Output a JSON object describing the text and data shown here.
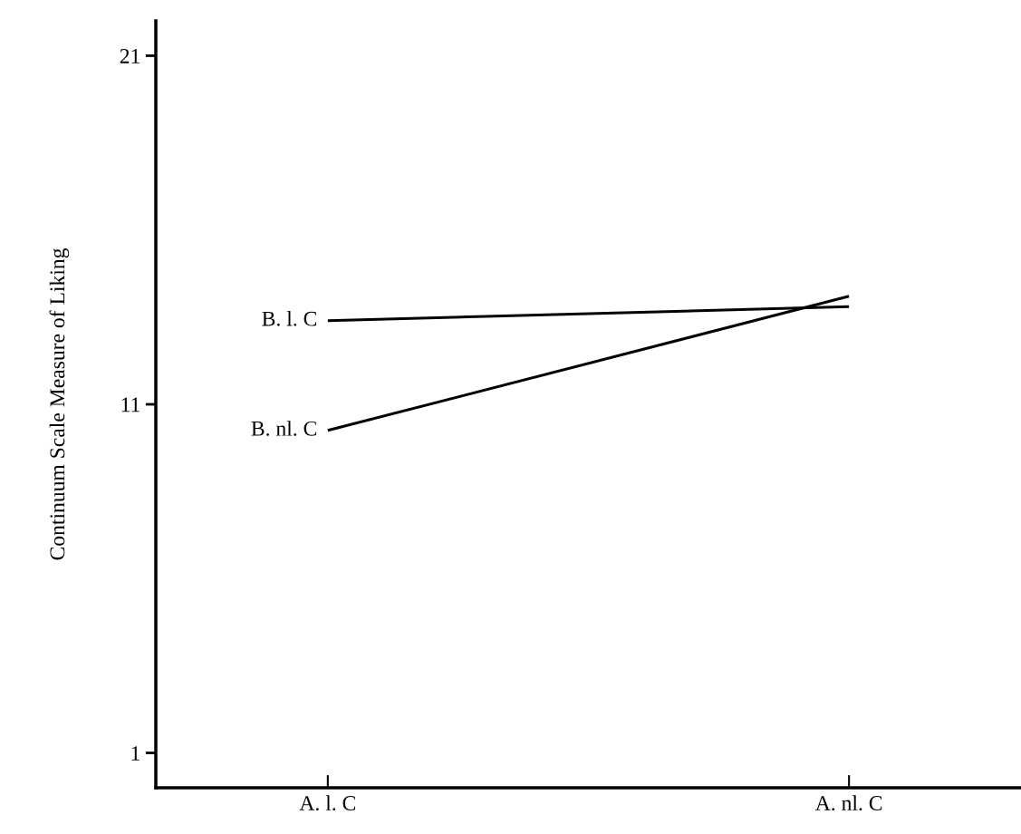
{
  "chart_data": {
    "type": "line",
    "ylabel": "Continuum Scale Measure of Liking",
    "categories": [
      "A. l. C",
      "A. nl. C"
    ],
    "series": [
      {
        "name": "B. l. C",
        "color": "#000000",
        "values": [
          13.4,
          13.8
        ]
      },
      {
        "name": "B. nl. C",
        "color": "#000000",
        "values": [
          10.25,
          14.1
        ]
      }
    ],
    "ylim": [
      0,
      22
    ],
    "yticks": [
      1,
      11,
      21
    ],
    "grid": false,
    "legend": false,
    "marker": "none",
    "line_style": "solid"
  }
}
